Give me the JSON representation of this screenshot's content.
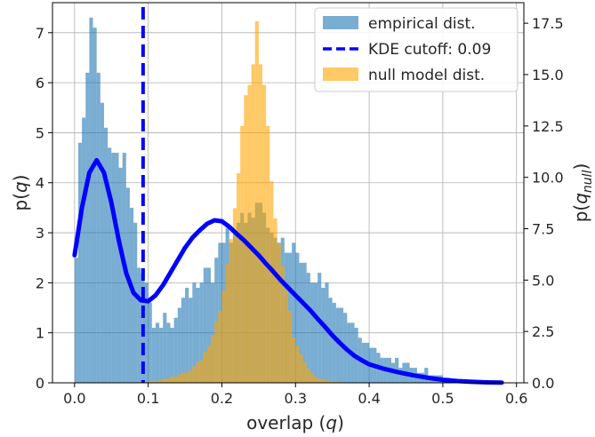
{
  "chart_data": {
    "type": "bar",
    "xlabel": {
      "prefix": "overlap (",
      "var": "q",
      "suffix": ")"
    },
    "ylabel_left": {
      "prefix": "p(",
      "var": "q",
      "suffix": ")"
    },
    "ylabel_right": {
      "prefix": "p(",
      "var": "q",
      "sub": "null",
      "suffix": ")"
    },
    "xlim": [
      -0.03,
      0.61
    ],
    "ylim_left": [
      0,
      7.6
    ],
    "ylim_right": [
      0,
      18.5
    ],
    "x_ticks": [
      "0.0",
      "0.1",
      "0.2",
      "0.3",
      "0.4",
      "0.5",
      "0.6"
    ],
    "y_ticks_left": [
      "0",
      "1",
      "2",
      "3",
      "4",
      "5",
      "6",
      "7"
    ],
    "y_ticks_right": [
      "0.0",
      "2.5",
      "5.0",
      "7.5",
      "10.0",
      "12.5",
      "15.0",
      "17.5"
    ],
    "grid": true,
    "legend_position": "top-right",
    "legend": [
      {
        "label": "empirical dist.",
        "kind": "patch",
        "color": "#1f77b4"
      },
      {
        "label": "KDE cutoff: 0.09",
        "kind": "dashed-line",
        "color": "#0000ff"
      },
      {
        "label": "null model dist.",
        "kind": "patch",
        "color": "#ffa500"
      }
    ],
    "series": [
      {
        "name": "empirical dist.",
        "axis": "left",
        "kind": "histogram",
        "color": "#1f77b4",
        "opacity": 0.6,
        "bin_start": 0.0,
        "bin_width": 0.005,
        "values": [
          2.5,
          4.8,
          5.3,
          6.2,
          7.3,
          7.1,
          6.2,
          5.6,
          5.1,
          4.7,
          4.6,
          4.6,
          4.3,
          4.6,
          3.9,
          3.5,
          3.2,
          2.3,
          2.2,
          2.0,
          1.6,
          1.1,
          1.2,
          1.1,
          1.4,
          1.2,
          1.1,
          1.3,
          1.5,
          1.7,
          1.9,
          1.7,
          2.0,
          1.9,
          2.0,
          2.3,
          2.3,
          2.0,
          2.5,
          2.8,
          2.8,
          3.1,
          2.8,
          3.0,
          3.2,
          3.4,
          3.2,
          3.4,
          3.3,
          3.6,
          3.6,
          3.4,
          3.1,
          3.0,
          2.9,
          2.8,
          2.9,
          2.6,
          2.6,
          2.8,
          2.6,
          2.4,
          2.4,
          2.2,
          2.0,
          2.0,
          2.2,
          1.9,
          2.0,
          1.7,
          1.6,
          1.5,
          1.5,
          1.4,
          1.2,
          1.2,
          1.1,
          0.9,
          0.8,
          0.8,
          0.7,
          0.7,
          0.6,
          0.5,
          0.5,
          0.5,
          0.4,
          0.5,
          0.3,
          0.4,
          0.4,
          0.3,
          0.3,
          0.2,
          0.2,
          0.3,
          0.15,
          0.15,
          0.15,
          0.15,
          0.1,
          0.1,
          0.08,
          0.08,
          0.05,
          0.05,
          0.04,
          0.03,
          0.03,
          0.02,
          0.02,
          0.01,
          0.01,
          0.01,
          0.01,
          0.01,
          0.005
        ]
      },
      {
        "name": "null model dist.",
        "axis": "right",
        "kind": "histogram",
        "color": "#ffa500",
        "opacity": 0.6,
        "bin_start": 0.08,
        "bin_width": 0.005,
        "values": [
          0.02,
          0.03,
          0.05,
          0.05,
          0.08,
          0.1,
          0.1,
          0.15,
          0.2,
          0.2,
          0.3,
          0.3,
          0.4,
          0.5,
          0.5,
          0.6,
          0.8,
          1.0,
          1.1,
          1.5,
          1.8,
          2.3,
          3.0,
          3.5,
          4.5,
          5.8,
          7.0,
          8.5,
          10.2,
          12.5,
          14.0,
          14.5,
          15.5,
          17.6,
          15.5,
          14.5,
          12.5,
          9.8,
          8.0,
          6.8,
          5.7,
          4.5,
          3.5,
          2.2,
          1.8,
          1.4,
          1.0,
          0.7,
          0.5,
          0.3,
          0.2,
          0.15,
          0.12,
          0.1,
          0.05,
          0.04,
          0.03,
          0.02
        ]
      },
      {
        "name": "KDE",
        "axis": "left",
        "kind": "line",
        "color": "#0000ff",
        "x": [
          0.0,
          0.01,
          0.02,
          0.03,
          0.04,
          0.05,
          0.06,
          0.07,
          0.08,
          0.09,
          0.1,
          0.11,
          0.12,
          0.13,
          0.14,
          0.15,
          0.16,
          0.17,
          0.18,
          0.19,
          0.2,
          0.21,
          0.22,
          0.23,
          0.24,
          0.25,
          0.26,
          0.27,
          0.28,
          0.29,
          0.3,
          0.31,
          0.32,
          0.33,
          0.34,
          0.35,
          0.36,
          0.37,
          0.38,
          0.39,
          0.4,
          0.42,
          0.44,
          0.46,
          0.48,
          0.5,
          0.52,
          0.54,
          0.56,
          0.58
        ],
        "y": [
          2.55,
          3.5,
          4.2,
          4.45,
          4.2,
          3.6,
          2.85,
          2.2,
          1.8,
          1.65,
          1.63,
          1.75,
          1.95,
          2.2,
          2.45,
          2.7,
          2.9,
          3.05,
          3.18,
          3.25,
          3.23,
          3.12,
          2.98,
          2.85,
          2.7,
          2.55,
          2.38,
          2.22,
          2.05,
          1.9,
          1.75,
          1.6,
          1.45,
          1.28,
          1.12,
          0.95,
          0.8,
          0.66,
          0.54,
          0.45,
          0.37,
          0.28,
          0.21,
          0.15,
          0.1,
          0.06,
          0.035,
          0.02,
          0.01,
          0.005
        ]
      }
    ],
    "cutoff": {
      "x": 0.093,
      "color": "#0000ff",
      "style": "dashed"
    }
  }
}
